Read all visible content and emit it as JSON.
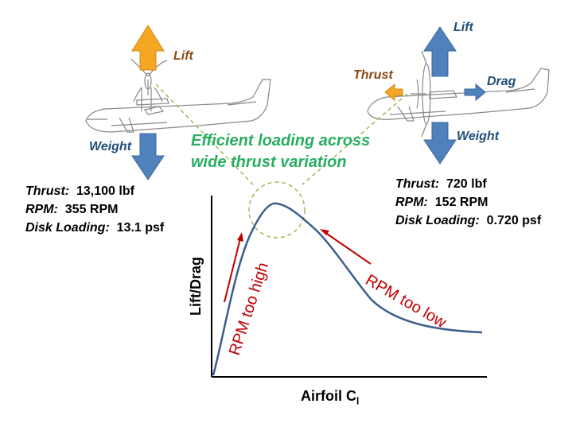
{
  "diagram": {
    "left_aircraft": {
      "force_labels": {
        "lift": "Lift",
        "weight": "Weight"
      },
      "specs": [
        {
          "key": "Thrust:",
          "value": "13,100 lbf"
        },
        {
          "key": "RPM:",
          "value": "355 RPM"
        },
        {
          "key": "Disk Loading:",
          "value": "13.1 psf"
        }
      ]
    },
    "right_aircraft": {
      "force_labels": {
        "lift": "Lift",
        "thrust": "Thrust",
        "drag": "Drag",
        "weight": "Weight"
      },
      "specs": [
        {
          "key": "Thrust:",
          "value": "720 lbf"
        },
        {
          "key": "RPM:",
          "value": "152 RPM"
        },
        {
          "key": "Disk Loading:",
          "value": "0.720 psf"
        }
      ]
    },
    "callout": {
      "line1": "Efficient loading across",
      "line2": "wide thrust variation"
    },
    "chart": {
      "ylabel": "Lift/Drag",
      "xlabel_main": "Airfoil C",
      "xlabel_sub": "l",
      "annotation_left": "RPM too high",
      "annotation_right": "RPM too low"
    },
    "colors": {
      "lift_arrow": "#F5A623",
      "force_arrow": "#4F81BD",
      "thrust_arrow": "#F5A623",
      "curve": "#3B5E8C",
      "annotation": "#C00000",
      "callout": "#27AE60",
      "callout_circle": "#9BBB59"
    }
  }
}
